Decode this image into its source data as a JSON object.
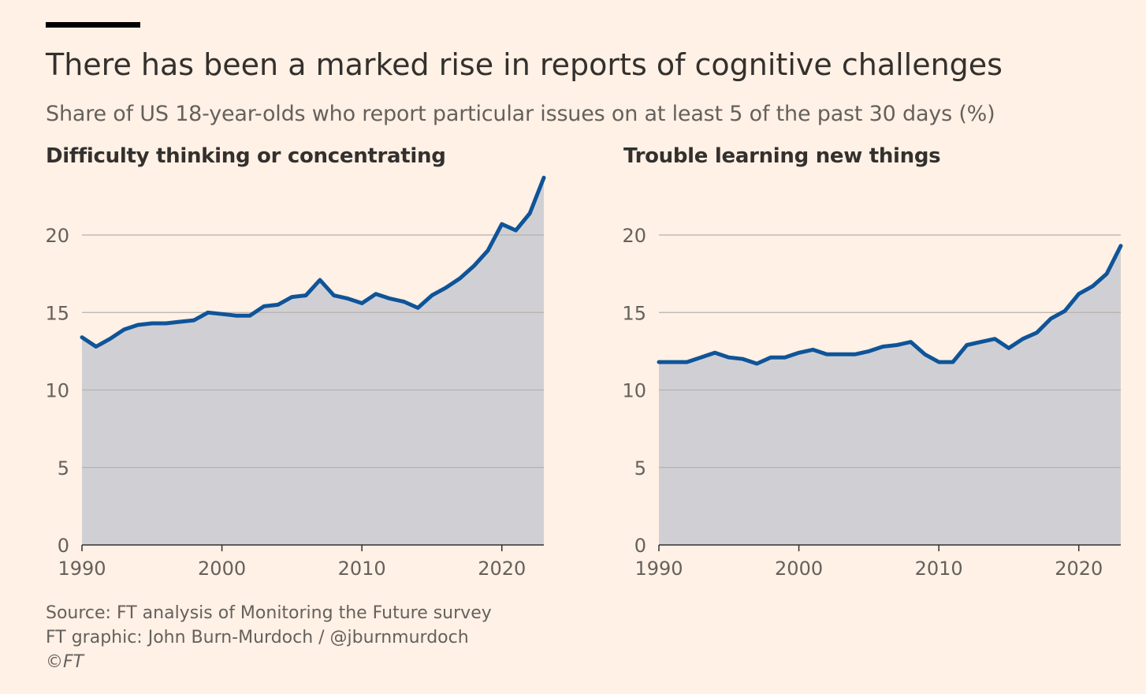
{
  "header": {
    "title": "There has been a marked rise in reports of cognitive challenges",
    "subtitle": "Share of US 18-year-olds who report particular issues on at least 5 of the past 30 days (%)"
  },
  "footer": {
    "source": "Source: FT analysis of Monitoring the Future survey",
    "graphic": "FT graphic: John Burn-Murdoch / @jburnmurdoch",
    "copyright": "©FT"
  },
  "colors": {
    "background": "#fff1e5",
    "line": "#0f5499",
    "area": "#d0d0d4",
    "grid": "#b7b1ad",
    "axis": "#33302e",
    "text": "#33302e",
    "muted": "#66605c"
  },
  "chart_data": [
    {
      "type": "area",
      "title": "Difficulty thinking or concentrating",
      "xlabel": "",
      "ylabel": "",
      "xlim": [
        1990,
        2023
      ],
      "ylim": [
        0,
        24
      ],
      "xticks": [
        1990,
        2000,
        2010,
        2020
      ],
      "yticks": [
        0,
        5,
        10,
        15,
        20
      ],
      "grid": true,
      "x": [
        1990,
        1991,
        1992,
        1993,
        1994,
        1995,
        1996,
        1997,
        1998,
        1999,
        2000,
        2001,
        2002,
        2003,
        2004,
        2005,
        2006,
        2007,
        2008,
        2009,
        2010,
        2011,
        2012,
        2013,
        2014,
        2015,
        2016,
        2017,
        2018,
        2019,
        2020,
        2021,
        2022,
        2023
      ],
      "values": [
        13.4,
        12.8,
        13.3,
        13.9,
        14.2,
        14.3,
        14.3,
        14.4,
        14.5,
        15.0,
        14.9,
        14.8,
        14.8,
        15.4,
        15.5,
        16.0,
        16.1,
        17.1,
        16.1,
        15.9,
        15.6,
        16.2,
        15.9,
        15.7,
        15.3,
        16.1,
        16.6,
        17.2,
        18.0,
        19.0,
        20.7,
        20.3,
        21.4,
        23.7
      ]
    },
    {
      "type": "area",
      "title": "Trouble learning new things",
      "xlabel": "",
      "ylabel": "",
      "xlim": [
        1990,
        2023
      ],
      "ylim": [
        0,
        24
      ],
      "xticks": [
        1990,
        2000,
        2010,
        2020
      ],
      "yticks": [
        0,
        5,
        10,
        15,
        20
      ],
      "grid": true,
      "x": [
        1990,
        1991,
        1992,
        1993,
        1994,
        1995,
        1996,
        1997,
        1998,
        1999,
        2000,
        2001,
        2002,
        2003,
        2004,
        2005,
        2006,
        2007,
        2008,
        2009,
        2010,
        2011,
        2012,
        2013,
        2014,
        2015,
        2016,
        2017,
        2018,
        2019,
        2020,
        2021,
        2022,
        2023
      ],
      "values": [
        11.8,
        11.8,
        11.8,
        12.1,
        12.4,
        12.1,
        12.0,
        11.7,
        12.1,
        12.1,
        12.4,
        12.6,
        12.3,
        12.3,
        12.3,
        12.5,
        12.8,
        12.9,
        13.1,
        12.3,
        11.8,
        11.8,
        12.9,
        13.1,
        13.3,
        12.7,
        13.3,
        13.7,
        14.6,
        15.1,
        16.2,
        16.7,
        17.5,
        19.3
      ]
    }
  ]
}
